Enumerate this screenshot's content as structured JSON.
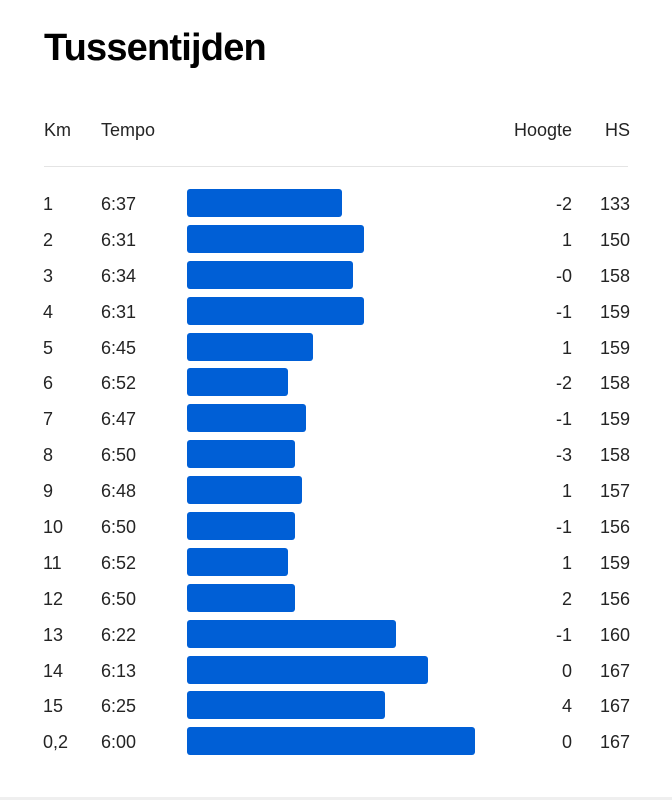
{
  "title": "Tussentijden",
  "columns": {
    "km": "Km",
    "tempo": "Tempo",
    "hoogte": "Hoogte",
    "hs": "HS"
  },
  "accent_color": "#005fd6",
  "splits": [
    {
      "km": "1",
      "tempo": "6:37",
      "pace_seconds": 397,
      "hoogte": "-2",
      "hs": "133"
    },
    {
      "km": "2",
      "tempo": "6:31",
      "pace_seconds": 391,
      "hoogte": "1",
      "hs": "150"
    },
    {
      "km": "3",
      "tempo": "6:34",
      "pace_seconds": 394,
      "hoogte": "-0",
      "hs": "158"
    },
    {
      "km": "4",
      "tempo": "6:31",
      "pace_seconds": 391,
      "hoogte": "-1",
      "hs": "159"
    },
    {
      "km": "5",
      "tempo": "6:45",
      "pace_seconds": 405,
      "hoogte": "1",
      "hs": "159"
    },
    {
      "km": "6",
      "tempo": "6:52",
      "pace_seconds": 412,
      "hoogte": "-2",
      "hs": "158"
    },
    {
      "km": "7",
      "tempo": "6:47",
      "pace_seconds": 407,
      "hoogte": "-1",
      "hs": "159"
    },
    {
      "km": "8",
      "tempo": "6:50",
      "pace_seconds": 410,
      "hoogte": "-3",
      "hs": "158"
    },
    {
      "km": "9",
      "tempo": "6:48",
      "pace_seconds": 408,
      "hoogte": "1",
      "hs": "157"
    },
    {
      "km": "10",
      "tempo": "6:50",
      "pace_seconds": 410,
      "hoogte": "-1",
      "hs": "156"
    },
    {
      "km": "11",
      "tempo": "6:52",
      "pace_seconds": 412,
      "hoogte": "1",
      "hs": "159"
    },
    {
      "km": "12",
      "tempo": "6:50",
      "pace_seconds": 410,
      "hoogte": "2",
      "hs": "156"
    },
    {
      "km": "13",
      "tempo": "6:22",
      "pace_seconds": 382,
      "hoogte": "-1",
      "hs": "160"
    },
    {
      "km": "14",
      "tempo": "6:13",
      "pace_seconds": 373,
      "hoogte": "0",
      "hs": "167"
    },
    {
      "km": "15",
      "tempo": "6:25",
      "pace_seconds": 385,
      "hoogte": "4",
      "hs": "167"
    },
    {
      "km": "0,2",
      "tempo": "6:00",
      "pace_seconds": 360,
      "hoogte": "0",
      "hs": "167"
    }
  ]
}
